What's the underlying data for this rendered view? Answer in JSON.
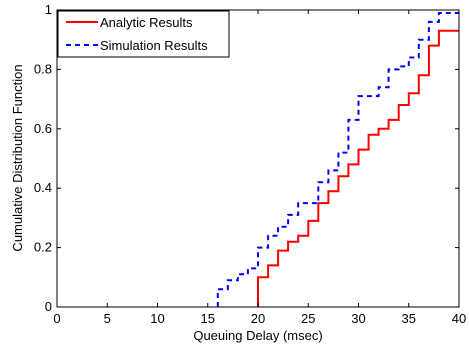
{
  "chart_data": {
    "type": "line",
    "line_shape": "step",
    "title": "",
    "xlabel": "Queuing Delay (msec)",
    "ylabel": "Cumulative Distribution Function",
    "xlim": [
      0,
      40
    ],
    "ylim": [
      0,
      1
    ],
    "xticks": [
      0,
      5,
      10,
      15,
      20,
      25,
      30,
      35,
      40
    ],
    "yticks": [
      0,
      0.2,
      0.4,
      0.6,
      0.8,
      1
    ],
    "xtick_labels": [
      "0",
      "5",
      "10",
      "15",
      "20",
      "25",
      "30",
      "35",
      "40"
    ],
    "ytick_labels": [
      "0",
      "0.2",
      "0.4",
      "0.6",
      "0.8",
      "1"
    ],
    "grid": false,
    "legend_position": "top-left",
    "series": [
      {
        "name": "Analytic Results",
        "color": "#ff0000",
        "dash": "solid",
        "x": [
          20,
          21,
          22,
          23,
          24,
          25,
          26,
          27,
          28,
          29,
          30,
          31,
          32,
          33,
          34,
          35,
          36,
          37,
          38,
          40
        ],
        "y": [
          0.1,
          0.14,
          0.19,
          0.22,
          0.24,
          0.29,
          0.35,
          0.39,
          0.44,
          0.48,
          0.53,
          0.58,
          0.6,
          0.63,
          0.68,
          0.72,
          0.78,
          0.88,
          0.93,
          0.93
        ]
      },
      {
        "name": "Simulation Results",
        "color": "#0000ff",
        "dash": "dashed",
        "x": [
          16,
          17,
          18,
          19,
          20,
          21,
          22,
          23,
          24,
          25,
          26,
          27,
          28,
          29,
          30,
          31,
          32,
          33,
          34,
          35,
          36,
          37,
          38
        ],
        "y": [
          0.06,
          0.09,
          0.11,
          0.13,
          0.2,
          0.24,
          0.27,
          0.31,
          0.35,
          0.35,
          0.42,
          0.46,
          0.52,
          0.63,
          0.71,
          0.71,
          0.74,
          0.8,
          0.81,
          0.84,
          0.9,
          0.96,
          0.99
        ]
      }
    ]
  }
}
